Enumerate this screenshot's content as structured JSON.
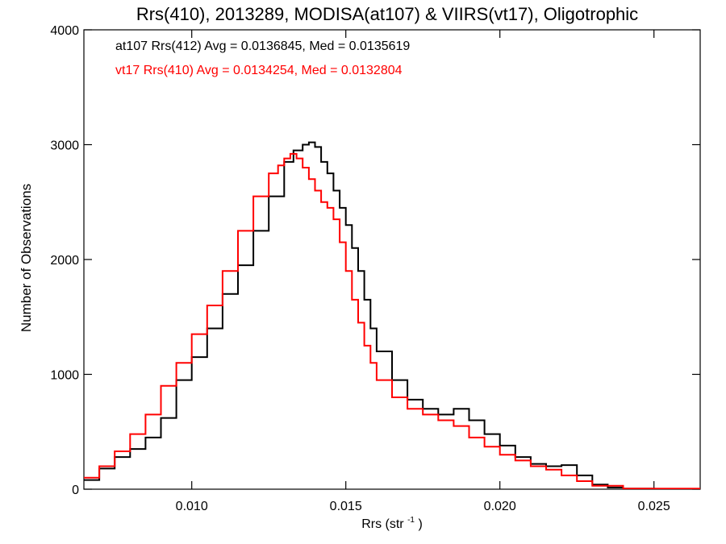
{
  "chart_data": {
    "type": "line",
    "step": true,
    "title": "Rrs(410), 2013289, MODISA(at107) & VIIRS(vt17), Oligotrophic",
    "xlabel_main": "Rrs (str",
    "xlabel_sup": "-1",
    "xlabel_tail": ")",
    "ylabel": "Number of Observations",
    "xlim": [
      0.0065,
      0.0265
    ],
    "ylim": [
      0,
      4000
    ],
    "xticks": [
      0.01,
      0.015,
      0.02,
      0.025
    ],
    "xtick_labels": [
      "0.010",
      "0.015",
      "0.020",
      "0.025"
    ],
    "yticks": [
      0,
      1000,
      2000,
      3000,
      4000
    ],
    "ytick_labels": [
      "0",
      "1000",
      "2000",
      "3000",
      "4000"
    ],
    "grid": false,
    "legend_position": "top-left",
    "series": [
      {
        "name": "at107 Rrs(412) Avg = 0.0136845, Med = 0.0135619",
        "color": "#000000",
        "x": [
          0.0065,
          0.007,
          0.0075,
          0.008,
          0.0085,
          0.009,
          0.0095,
          0.01,
          0.0105,
          0.011,
          0.0115,
          0.012,
          0.0125,
          0.013,
          0.0133,
          0.0136,
          0.0138,
          0.014,
          0.0142,
          0.0144,
          0.0146,
          0.0148,
          0.015,
          0.0152,
          0.0154,
          0.0156,
          0.0158,
          0.016,
          0.0165,
          0.017,
          0.0175,
          0.018,
          0.0185,
          0.019,
          0.0195,
          0.02,
          0.0205,
          0.021,
          0.0215,
          0.022,
          0.0225,
          0.023,
          0.0235,
          0.024,
          0.025,
          0.0265
        ],
        "y": [
          80,
          180,
          280,
          350,
          450,
          620,
          950,
          1150,
          1400,
          1700,
          1950,
          2250,
          2550,
          2850,
          2950,
          3000,
          3020,
          2980,
          2850,
          2750,
          2600,
          2450,
          2300,
          2100,
          1900,
          1650,
          1400,
          1200,
          950,
          780,
          700,
          650,
          700,
          600,
          480,
          380,
          280,
          220,
          200,
          210,
          120,
          40,
          15,
          5,
          0,
          0
        ]
      },
      {
        "name": "vt17 Rrs(410) Avg = 0.0134254, Med = 0.0132804",
        "color": "#ff0000",
        "x": [
          0.0065,
          0.007,
          0.0075,
          0.008,
          0.0085,
          0.009,
          0.0095,
          0.01,
          0.0105,
          0.011,
          0.0115,
          0.012,
          0.0125,
          0.0128,
          0.013,
          0.0132,
          0.0134,
          0.0136,
          0.0138,
          0.014,
          0.0142,
          0.0144,
          0.0146,
          0.0148,
          0.015,
          0.0152,
          0.0154,
          0.0156,
          0.0158,
          0.016,
          0.0165,
          0.017,
          0.0175,
          0.018,
          0.0185,
          0.019,
          0.0195,
          0.02,
          0.0205,
          0.021,
          0.0215,
          0.022,
          0.0225,
          0.023,
          0.024,
          0.0265
        ],
        "y": [
          100,
          200,
          330,
          480,
          650,
          900,
          1100,
          1350,
          1600,
          1900,
          2250,
          2550,
          2750,
          2820,
          2880,
          2920,
          2880,
          2800,
          2700,
          2600,
          2500,
          2450,
          2350,
          2150,
          1900,
          1650,
          1450,
          1250,
          1100,
          950,
          800,
          700,
          650,
          600,
          550,
          450,
          370,
          300,
          250,
          200,
          170,
          120,
          70,
          30,
          5,
          0
        ]
      }
    ]
  }
}
